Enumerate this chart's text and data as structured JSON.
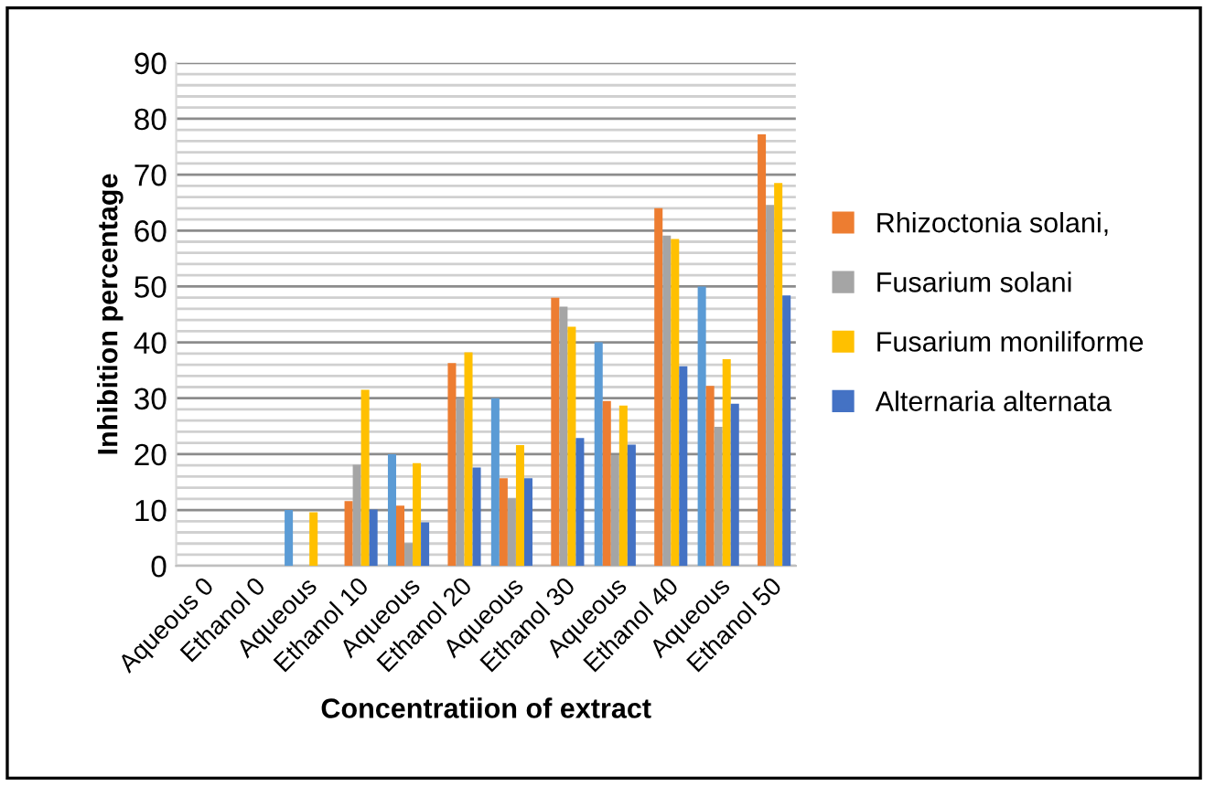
{
  "chart_data": {
    "type": "bar",
    "xlabel": "Concentratiion of extract",
    "ylabel": "Inhibition percentage",
    "categories": [
      "Aqueous 0",
      "Ethanol 0",
      "Aqueous",
      "Ethanol 10",
      "Aqueous",
      "Ethanol 20",
      "Aqueous",
      "Ethanol 30",
      "Aqueous",
      "Ethanol 40",
      "Aqueous",
      "Ethanol 50"
    ],
    "series": [
      {
        "color": "#5b9bd5",
        "values": [
          null,
          null,
          10,
          null,
          20,
          null,
          30,
          null,
          40,
          null,
          50,
          null
        ]
      },
      {
        "name": "Rhizoctonia solani,",
        "color": "#ed7d31",
        "values": [
          null,
          null,
          null,
          11.6,
          10.8,
          36.3,
          15.7,
          48,
          29.5,
          64,
          32.2,
          77.2
        ]
      },
      {
        "name": "Fusarium solani",
        "color": "#a5a5a5",
        "values": [
          null,
          null,
          null,
          18.1,
          4.1,
          30,
          12.1,
          46.4,
          19.8,
          59.1,
          24.9,
          64.6
        ]
      },
      {
        "name": "Fusarium moniliforme",
        "color": "#ffc000",
        "values": [
          null,
          null,
          9.6,
          31.5,
          18.4,
          38.2,
          21.6,
          42.8,
          28.7,
          58.5,
          37,
          68.5
        ]
      },
      {
        "name": "Alternaria alternata",
        "color": "#4472c4",
        "values": [
          null,
          null,
          null,
          10.1,
          7.8,
          17.6,
          15.7,
          22.9,
          21.7,
          35.7,
          29,
          48.4
        ]
      }
    ],
    "ylim": [
      0,
      90
    ],
    "yticks": [
      0,
      {
        "value": 2,
        "label": null
      },
      {
        "value": 4,
        "label": null
      },
      {
        "value": 6,
        "label": null
      },
      {
        "value": 8,
        "label": null
      },
      10,
      {
        "value": 12,
        "label": null
      },
      {
        "value": 14,
        "label": null
      },
      {
        "value": 16,
        "label": null
      },
      {
        "value": 18,
        "label": null
      },
      20,
      {
        "value": 22,
        "label": null
      },
      {
        "value": 24,
        "label": null
      },
      {
        "value": 26,
        "label": null
      },
      {
        "value": 28,
        "label": null
      },
      30,
      {
        "value": 32,
        "label": null
      },
      {
        "value": 34,
        "label": null
      },
      {
        "value": 36,
        "label": null
      },
      {
        "value": 38,
        "label": null
      },
      40,
      {
        "value": 42,
        "label": null
      },
      {
        "value": 44,
        "label": null
      },
      {
        "value": 46,
        "label": null
      },
      {
        "value": 48,
        "label": null
      },
      50,
      {
        "value": 52,
        "label": null
      },
      {
        "value": 54,
        "label": null
      },
      {
        "value": 56,
        "label": null
      },
      {
        "value": 58,
        "label": null
      },
      60,
      {
        "value": 62,
        "label": null
      },
      {
        "value": 64,
        "label": null
      },
      {
        "value": 66,
        "label": null
      },
      {
        "value": 68,
        "label": null
      },
      70,
      {
        "value": 72,
        "label": null
      },
      {
        "value": 74,
        "label": null
      },
      {
        "value": 76,
        "label": null
      },
      {
        "value": 78,
        "label": null
      },
      80,
      {
        "value": 82,
        "label": null
      },
      {
        "value": 84,
        "label": null
      },
      {
        "value": 86,
        "label": null
      },
      {
        "value": 88,
        "label": null
      },
      90
    ],
    "grid": "y",
    "legend": "right"
  }
}
